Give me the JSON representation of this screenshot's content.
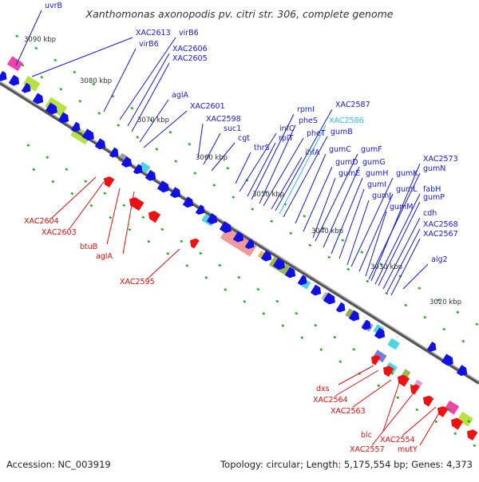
{
  "title": "Xanthomonas axonopodis pv. citri str. 306, complete genome",
  "footer": {
    "accession": "Accession: NC_003919",
    "info": "Topology: circular; Length: 5,175,554 bp; Genes: 4,373"
  },
  "colors": {
    "forward_label": "#1a1ad0",
    "reverse_label": "#dd1111",
    "highlight_label": "#33bbee",
    "backbone": "#888888",
    "cds_forward": "#1010e0",
    "cds_reverse": "#ee1111",
    "tick": "#22aa22"
  },
  "scale_ticks": [
    "3090 kbp",
    "3080 kbp",
    "3070 kbp",
    "3060 kbp",
    "3050 kbp",
    "3040 kbp",
    "3030 kbp",
    "3020 kbp"
  ],
  "forward_labels": [
    "uvrB",
    "XAC2613",
    "virB6",
    "virB6",
    "XAC2606",
    "XAC2605",
    "aglA",
    "XAC2601",
    "XAC2598",
    "suc1",
    "cgt",
    "thrS",
    "infC",
    "rplT",
    "pheS",
    "pheT",
    "rpmI",
    "ihfA",
    "XAC2587",
    "XAC2586",
    "gumB",
    "gumC",
    "gumD",
    "gumE",
    "gumF",
    "gumG",
    "gumH",
    "gumI",
    "gumJ",
    "gumK",
    "gumL",
    "gumM",
    "gumN",
    "XAC2573",
    "fabH",
    "gumP",
    "cdh",
    "XAC2568",
    "XAC2567",
    "alg2"
  ],
  "highlight_label": "XAC2586",
  "reverse_labels_upper": [
    "XAC2604",
    "XAC2603",
    "btuB",
    "aglA",
    "XAC2595"
  ],
  "reverse_labels_lower": [
    "dxs",
    "XAC2564",
    "XAC2563",
    "blc",
    "XAC2557",
    "XAC2554",
    "mutY"
  ]
}
